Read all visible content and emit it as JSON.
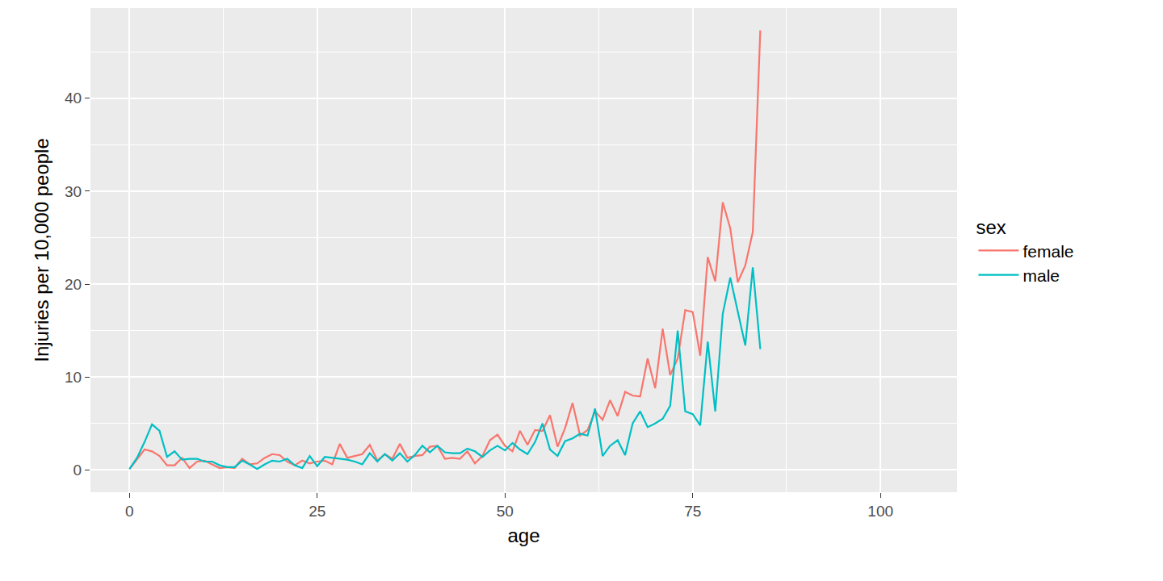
{
  "chart_data": {
    "type": "line",
    "x_label": "age",
    "y_label": "Injuries per 10,000 people",
    "legend_title": "sex",
    "legend": "right",
    "grid": true,
    "xlim": [
      -5.2,
      110.2
    ],
    "xticks": [
      0,
      25,
      50,
      75,
      100
    ],
    "ylim": [
      -2.4,
      49.7
    ],
    "yticks": [
      0,
      10,
      20,
      30,
      40
    ],
    "x": [
      0,
      1,
      2,
      3,
      4,
      5,
      6,
      7,
      8,
      9,
      10,
      11,
      12,
      13,
      14,
      15,
      16,
      17,
      18,
      19,
      20,
      21,
      22,
      23,
      24,
      25,
      26,
      27,
      28,
      29,
      30,
      31,
      32,
      33,
      34,
      35,
      36,
      37,
      38,
      39,
      40,
      41,
      42,
      43,
      44,
      45,
      46,
      47,
      48,
      49,
      50,
      51,
      52,
      53,
      54,
      55,
      56,
      57,
      58,
      59,
      60,
      61,
      62,
      63,
      64,
      65,
      66,
      67,
      68,
      69,
      70,
      71,
      72,
      73,
      74,
      75,
      76,
      77,
      78,
      79,
      80,
      81,
      82,
      83,
      84
    ],
    "series": [
      {
        "name": "female",
        "color": "#F8766D",
        "values": [
          0.1,
          1.2,
          2.2,
          2.0,
          1.5,
          0.5,
          0.5,
          1.3,
          0.2,
          0.9,
          1.0,
          0.6,
          0.2,
          0.3,
          0.2,
          1.2,
          0.6,
          0.7,
          1.3,
          1.7,
          1.6,
          0.9,
          0.5,
          1.0,
          0.7,
          0.9,
          1.0,
          0.6,
          2.8,
          1.3,
          1.5,
          1.7,
          2.7,
          1.0,
          1.7,
          1.2,
          2.8,
          1.3,
          1.5,
          1.6,
          2.5,
          2.6,
          1.2,
          1.3,
          1.2,
          2.0,
          0.7,
          1.5,
          3.2,
          3.8,
          2.6,
          2.0,
          4.2,
          2.7,
          4.3,
          4.2,
          5.9,
          2.5,
          4.5,
          7.2,
          3.7,
          4.3,
          6.3,
          5.4,
          7.5,
          5.8,
          8.4,
          8.0,
          7.9,
          12.0,
          8.8,
          15.2,
          10.2,
          12.0,
          17.2,
          17.0,
          12.3,
          22.9,
          20.3,
          28.8,
          26.0,
          20.2,
          22.0,
          25.6,
          47.3
        ]
      },
      {
        "name": "male",
        "color": "#00BFC4",
        "values": [
          0.1,
          1.3,
          3.0,
          4.9,
          4.2,
          1.4,
          2.0,
          1.1,
          1.2,
          1.2,
          0.9,
          0.9,
          0.5,
          0.3,
          0.3,
          1.0,
          0.6,
          0.1,
          0.6,
          1.0,
          0.9,
          1.2,
          0.5,
          0.2,
          1.5,
          0.4,
          1.4,
          1.3,
          1.2,
          1.1,
          0.9,
          0.6,
          1.8,
          0.9,
          1.7,
          1.0,
          1.8,
          0.9,
          1.6,
          2.6,
          1.9,
          2.6,
          1.9,
          1.8,
          1.8,
          2.3,
          2.0,
          1.4,
          2.1,
          2.6,
          2.1,
          2.9,
          2.2,
          1.7,
          3.0,
          5.0,
          2.2,
          1.5,
          3.1,
          3.4,
          3.9,
          3.7,
          6.6,
          1.5,
          2.6,
          3.2,
          1.6,
          5.0,
          6.3,
          4.6,
          5.0,
          5.5,
          6.9,
          15.0,
          6.3,
          6.0,
          4.8,
          13.8,
          6.3,
          16.8,
          20.7,
          17.0,
          13.4,
          21.8,
          13.0
        ]
      }
    ]
  }
}
